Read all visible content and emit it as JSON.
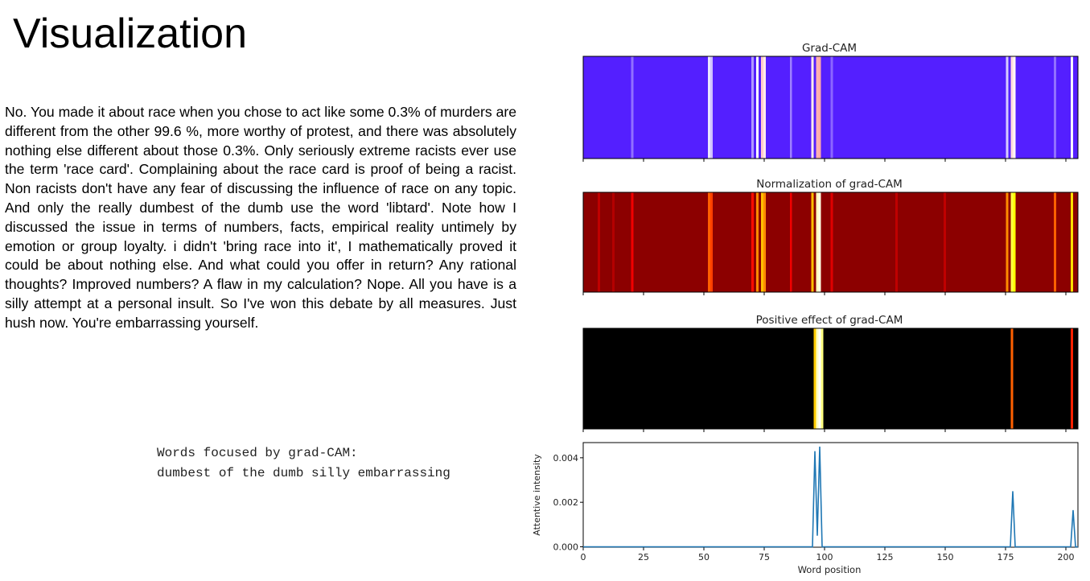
{
  "slide": {
    "title": "Visualization",
    "paragraph": "No. You made it about race when you chose to act like some 0.3% of murders are different from the other 99.6 %, more worthy of protest, and there was absolutely nothing else different about those 0.3%. Only seriously extreme racists ever use the term 'race card'. Complaining about the race card is proof of being a racist. Non racists don't have any fear of discussing the influence of race on any topic. And only the really dumbest of the dumb use the word 'libtard'. Note how I discussed the issue in terms of numbers, facts, empirical reality untimely by emotion or group loyalty. i didn't 'bring race into it', I mathematically proved it could be about nothing else. And what could you offer in return? Any rational thoughts? Improved numbers? A flaw in my calculation? Nope. All you have is a silly attempt at a personal insult. So I've won this debate by all measures. Just hush now. You're embarrassing yourself.",
    "focus_heading": "Words focused by grad-CAM:",
    "focus_words": "dumbest of the dumb silly embarrassing"
  },
  "chart_data": [
    {
      "type": "heatmap",
      "title": "Grad-CAM",
      "colormap": "blue-white-red",
      "color_low": "#3d00ff",
      "color_high": "#ff2a2a",
      "x_range": [
        0,
        205
      ],
      "baseline": 0.06,
      "peaks": [
        {
          "x": 20,
          "v": 0.22
        },
        {
          "x": 52,
          "v": 0.45
        },
        {
          "x": 53,
          "v": 0.38
        },
        {
          "x": 70,
          "v": 0.3
        },
        {
          "x": 72,
          "v": 0.5
        },
        {
          "x": 74,
          "v": 0.62
        },
        {
          "x": 75,
          "v": 0.55
        },
        {
          "x": 86,
          "v": 0.25
        },
        {
          "x": 95,
          "v": 0.55
        },
        {
          "x": 97,
          "v": 0.68
        },
        {
          "x": 98,
          "v": 0.7
        },
        {
          "x": 103,
          "v": 0.2
        },
        {
          "x": 176,
          "v": 0.4
        },
        {
          "x": 178,
          "v": 0.58
        },
        {
          "x": 179,
          "v": 0.52
        },
        {
          "x": 196,
          "v": 0.22
        },
        {
          "x": 203,
          "v": 0.48
        }
      ]
    },
    {
      "type": "heatmap",
      "title": "Normalization of grad-CAM",
      "colormap": "hot",
      "x_range": [
        0,
        205
      ],
      "baseline": 0.22,
      "peaks": [
        {
          "x": 6,
          "v": 0.3
        },
        {
          "x": 12,
          "v": 0.28
        },
        {
          "x": 20,
          "v": 0.38
        },
        {
          "x": 30,
          "v": 0.12
        },
        {
          "x": 34,
          "v": 0.12
        },
        {
          "x": 52,
          "v": 0.55
        },
        {
          "x": 53,
          "v": 0.5
        },
        {
          "x": 70,
          "v": 0.42
        },
        {
          "x": 72,
          "v": 0.62
        },
        {
          "x": 74,
          "v": 0.7
        },
        {
          "x": 75,
          "v": 0.62
        },
        {
          "x": 86,
          "v": 0.38
        },
        {
          "x": 95,
          "v": 0.7
        },
        {
          "x": 97,
          "v": 0.95
        },
        {
          "x": 98,
          "v": 0.98
        },
        {
          "x": 103,
          "v": 0.35
        },
        {
          "x": 130,
          "v": 0.3
        },
        {
          "x": 150,
          "v": 0.3
        },
        {
          "x": 176,
          "v": 0.62
        },
        {
          "x": 178,
          "v": 0.85
        },
        {
          "x": 179,
          "v": 0.8
        },
        {
          "x": 196,
          "v": 0.55
        },
        {
          "x": 203,
          "v": 0.75
        }
      ]
    },
    {
      "type": "heatmap",
      "title": "Positive effect of grad-CAM",
      "colormap": "hot",
      "x_range": [
        0,
        205
      ],
      "baseline": 0.0,
      "peaks": [
        {
          "x": 96,
          "v": 0.72
        },
        {
          "x": 97,
          "v": 0.95
        },
        {
          "x": 98,
          "v": 1.0
        },
        {
          "x": 99,
          "v": 0.9
        },
        {
          "x": 178,
          "v": 0.55
        },
        {
          "x": 203,
          "v": 0.45
        }
      ]
    },
    {
      "type": "line",
      "title": "",
      "xlabel": "Word position",
      "ylabel": "Attentive intensity",
      "xlim": [
        0,
        205
      ],
      "ylim": [
        0,
        0.0047
      ],
      "xticks": [
        "0",
        "25",
        "50",
        "75",
        "100",
        "125",
        "150",
        "175",
        "200"
      ],
      "yticks": [
        "0.000",
        "0.002",
        "0.004"
      ],
      "line_color": "#1f77b4",
      "points": [
        [
          0,
          0
        ],
        [
          95,
          0
        ],
        [
          96,
          0.0043
        ],
        [
          97,
          0.0005
        ],
        [
          98,
          0.0045
        ],
        [
          99,
          0
        ],
        [
          177,
          0
        ],
        [
          178,
          0.0025
        ],
        [
          179,
          0
        ],
        [
          202,
          0
        ],
        [
          203,
          0.00165
        ],
        [
          204,
          0
        ],
        [
          205,
          0
        ]
      ]
    }
  ]
}
